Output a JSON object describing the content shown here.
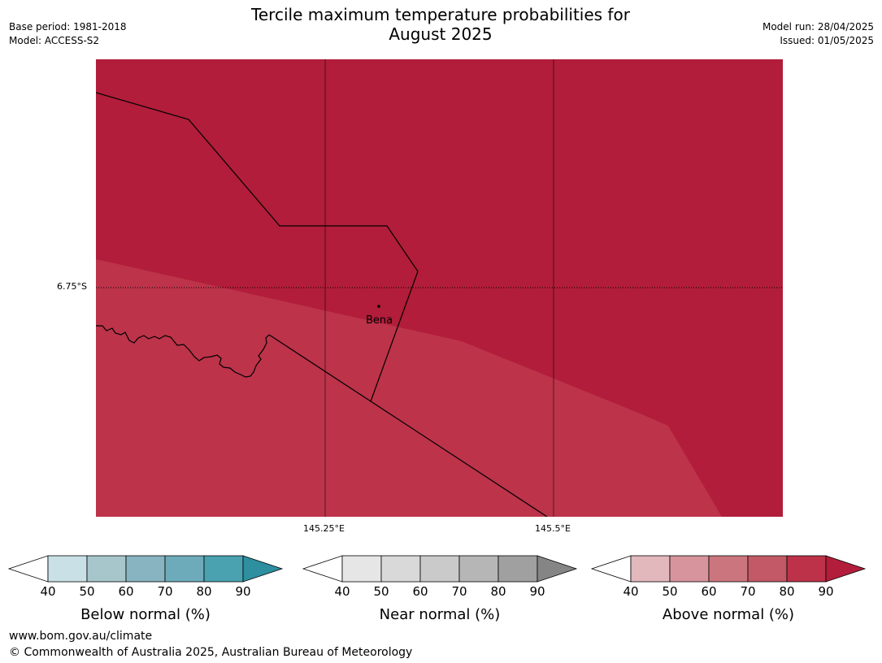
{
  "title_line1": "Tercile maximum temperature probabilities for",
  "title_line2": "August 2025",
  "meta_left": {
    "base_period": "Base period: 1981-2018",
    "model": "Model: ACCESS-S2"
  },
  "meta_right": {
    "model_run": "Model run: 28/04/2025",
    "issued": "Issued: 01/05/2025"
  },
  "map": {
    "latitude_label": "6.75°S",
    "longitude_labels": [
      "145.25°E",
      "145.5°E"
    ],
    "town_label": "Bena",
    "fill_colors": {
      "dark_region": "#b11d3a",
      "lighter_region": "#bc334a"
    }
  },
  "colorbars": [
    {
      "label": "Below normal (%)",
      "ticks": [
        "40",
        "50",
        "60",
        "70",
        "80",
        "90"
      ],
      "colors": [
        "#ffffff",
        "#c9e1e6",
        "#a7c6cc",
        "#88b4c1",
        "#6dabba",
        "#4aa1b0",
        "#2d8fa0"
      ]
    },
    {
      "label": "Near normal (%)",
      "ticks": [
        "40",
        "50",
        "60",
        "70",
        "80",
        "90"
      ],
      "colors": [
        "#ffffff",
        "#e6e6e6",
        "#d9d9d9",
        "#cacaca",
        "#b6b6b6",
        "#a0a0a0",
        "#858585"
      ]
    },
    {
      "label": "Above normal (%)",
      "ticks": [
        "40",
        "50",
        "60",
        "70",
        "80",
        "90"
      ],
      "colors": [
        "#ffffff",
        "#e2b8bd",
        "#d7949c",
        "#cb767e",
        "#c35966",
        "#bd3248",
        "#b11d3a"
      ]
    }
  ],
  "footer": {
    "url": "www.bom.gov.au/climate",
    "copyright": "© Commonwealth of Australia 2025, Australian Bureau of Meteorology"
  }
}
